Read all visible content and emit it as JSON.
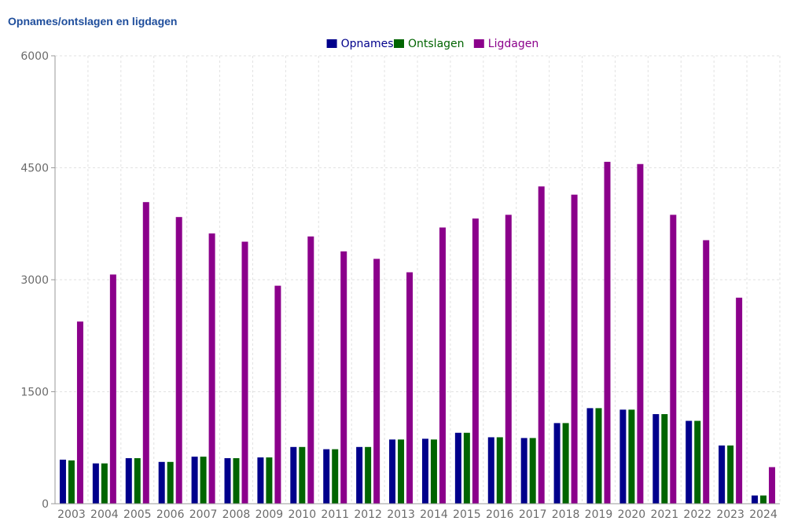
{
  "chart_data": {
    "type": "bar",
    "title": "Opnames/ontslagen en ligdagen",
    "categories": [
      "2003",
      "2004",
      "2005",
      "2006",
      "2007",
      "2008",
      "2009",
      "2010",
      "2011",
      "2012",
      "2013",
      "2014",
      "2015",
      "2016",
      "2017",
      "2018",
      "2019",
      "2020",
      "2021",
      "2022",
      "2023",
      "2024"
    ],
    "series": [
      {
        "name": "Opnames",
        "color": "#00008b",
        "values": [
          590,
          540,
          610,
          560,
          630,
          610,
          620,
          760,
          730,
          760,
          860,
          870,
          950,
          890,
          880,
          1080,
          1280,
          1260,
          1200,
          1110,
          780,
          110
        ]
      },
      {
        "name": "Ontslagen",
        "color": "#006400",
        "values": [
          580,
          540,
          610,
          560,
          630,
          610,
          620,
          760,
          730,
          760,
          860,
          860,
          950,
          890,
          880,
          1080,
          1280,
          1260,
          1200,
          1110,
          780,
          110
        ]
      },
      {
        "name": "Ligdagen",
        "color": "#8b008b",
        "values": [
          2440,
          3070,
          4040,
          3840,
          3620,
          3510,
          2920,
          3580,
          3380,
          3280,
          3100,
          3700,
          3820,
          3870,
          4250,
          4140,
          4580,
          4550,
          3870,
          3530,
          2760,
          490
        ]
      }
    ],
    "ylim": [
      0,
      6000
    ],
    "yticks": [
      0,
      1500,
      3000,
      4500,
      6000
    ],
    "legend": "top-center",
    "grid": true,
    "xlabel": "",
    "ylabel": ""
  }
}
